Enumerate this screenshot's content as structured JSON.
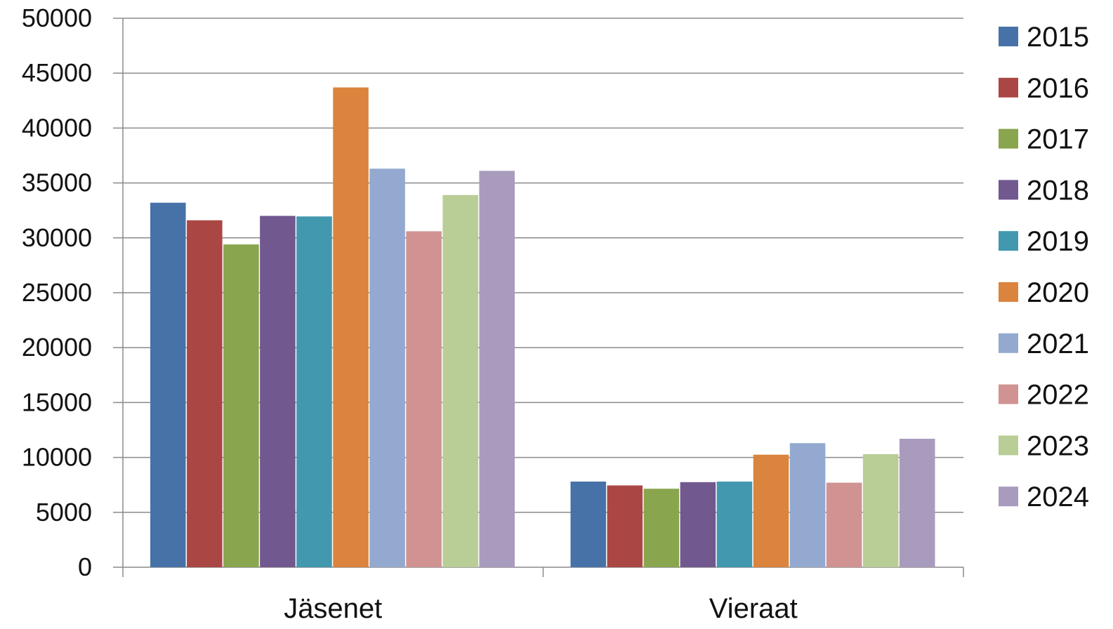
{
  "chart_data": {
    "type": "bar",
    "title": "",
    "xlabel": "",
    "ylabel": "",
    "categories": [
      "Jäsenet",
      "Vieraat"
    ],
    "ylim": [
      0,
      50000
    ],
    "yticks": [
      0,
      5000,
      10000,
      15000,
      20000,
      25000,
      30000,
      35000,
      40000,
      45000,
      50000
    ],
    "grid": true,
    "legend_position": "right",
    "series": [
      {
        "name": "2015",
        "color": "#4672A8",
        "values": [
          33200,
          7800
        ]
      },
      {
        "name": "2016",
        "color": "#AA4744",
        "values": [
          31600,
          7450
        ]
      },
      {
        "name": "2017",
        "color": "#89A54E",
        "values": [
          29400,
          7150
        ]
      },
      {
        "name": "2018",
        "color": "#71588F",
        "values": [
          32000,
          7750
        ]
      },
      {
        "name": "2019",
        "color": "#4198AF",
        "values": [
          31950,
          7800
        ]
      },
      {
        "name": "2020",
        "color": "#DB843D",
        "values": [
          43700,
          10250
        ]
      },
      {
        "name": "2021",
        "color": "#93A9CF",
        "values": [
          36300,
          11300
        ]
      },
      {
        "name": "2022",
        "color": "#D19392",
        "values": [
          30600,
          7700
        ]
      },
      {
        "name": "2023",
        "color": "#B9CD96",
        "values": [
          33900,
          10300
        ]
      },
      {
        "name": "2024",
        "color": "#A99BBD",
        "values": [
          36100,
          11700
        ]
      }
    ]
  }
}
